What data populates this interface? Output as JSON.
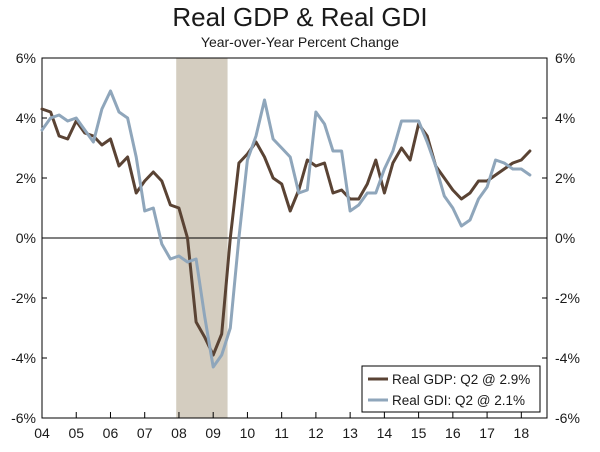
{
  "chart_data": {
    "type": "line",
    "title": "Real GDP & Real GDI",
    "subtitle": "Year-over-Year Percent Change",
    "ylim": [
      -6,
      6
    ],
    "y_ticks": [
      6,
      4,
      2,
      0,
      -2,
      -4,
      -6
    ],
    "y_tick_labels": [
      "6%",
      "4%",
      "2%",
      "0%",
      "-2%",
      "-4%",
      "-6%"
    ],
    "x_range": [
      2004.0,
      2018.75
    ],
    "x_ticks": [
      2004,
      2005,
      2006,
      2007,
      2008,
      2009,
      2010,
      2011,
      2012,
      2013,
      2014,
      2015,
      2016,
      2017,
      2018
    ],
    "x_tick_labels": [
      "04",
      "05",
      "06",
      "07",
      "08",
      "09",
      "10",
      "11",
      "12",
      "13",
      "14",
      "15",
      "16",
      "17",
      "18"
    ],
    "recession": [
      2007.92,
      2009.42
    ],
    "series": [
      {
        "name": "Real GDP: Q2 @ 2.9%",
        "color": "#5a4334",
        "x": [
          2004.0,
          2004.25,
          2004.5,
          2004.75,
          2005.0,
          2005.25,
          2005.5,
          2005.75,
          2006.0,
          2006.25,
          2006.5,
          2006.75,
          2007.0,
          2007.25,
          2007.5,
          2007.75,
          2008.0,
          2008.25,
          2008.5,
          2008.75,
          2009.0,
          2009.25,
          2009.5,
          2009.75,
          2010.0,
          2010.25,
          2010.5,
          2010.75,
          2011.0,
          2011.25,
          2011.5,
          2011.75,
          2012.0,
          2012.25,
          2012.5,
          2012.75,
          2013.0,
          2013.25,
          2013.5,
          2013.75,
          2014.0,
          2014.25,
          2014.5,
          2014.75,
          2015.0,
          2015.25,
          2015.5,
          2015.75,
          2016.0,
          2016.25,
          2016.5,
          2016.75,
          2017.0,
          2017.25,
          2017.5,
          2017.75,
          2018.0,
          2018.25
        ],
        "values": [
          4.3,
          4.2,
          3.4,
          3.3,
          3.9,
          3.5,
          3.4,
          3.1,
          3.3,
          2.4,
          2.7,
          1.5,
          1.9,
          2.2,
          1.9,
          1.1,
          1.0,
          0.0,
          -2.8,
          -3.3,
          -3.9,
          -3.2,
          0.0,
          2.5,
          2.8,
          3.2,
          2.7,
          2.0,
          1.8,
          0.9,
          1.6,
          2.6,
          2.4,
          2.5,
          1.5,
          1.6,
          1.3,
          1.3,
          1.8,
          2.6,
          1.5,
          2.5,
          3.0,
          2.6,
          3.8,
          3.4,
          2.4,
          2.0,
          1.6,
          1.3,
          1.5,
          1.9,
          1.9,
          2.1,
          2.3,
          2.5,
          2.6,
          2.9
        ]
      },
      {
        "name": "Real GDI: Q2 @ 2.1%",
        "color": "#8fa6bb",
        "x": [
          2004.0,
          2004.25,
          2004.5,
          2004.75,
          2005.0,
          2005.25,
          2005.5,
          2005.75,
          2006.0,
          2006.25,
          2006.5,
          2006.75,
          2007.0,
          2007.25,
          2007.5,
          2007.75,
          2008.0,
          2008.25,
          2008.5,
          2008.75,
          2009.0,
          2009.25,
          2009.5,
          2009.75,
          2010.0,
          2010.25,
          2010.5,
          2010.75,
          2011.0,
          2011.25,
          2011.5,
          2011.75,
          2012.0,
          2012.25,
          2012.5,
          2012.75,
          2013.0,
          2013.25,
          2013.5,
          2013.75,
          2014.0,
          2014.25,
          2014.5,
          2014.75,
          2015.0,
          2015.25,
          2015.5,
          2015.75,
          2016.0,
          2016.25,
          2016.5,
          2016.75,
          2017.0,
          2017.25,
          2017.5,
          2017.75,
          2018.0,
          2018.25
        ],
        "values": [
          3.6,
          4.0,
          4.1,
          3.9,
          4.0,
          3.6,
          3.2,
          4.3,
          4.9,
          4.2,
          4.0,
          2.7,
          0.9,
          1.0,
          -0.2,
          -0.7,
          -0.6,
          -0.8,
          -0.7,
          -2.6,
          -4.3,
          -3.9,
          -3.0,
          0.0,
          2.6,
          3.4,
          4.6,
          3.3,
          3.0,
          2.7,
          1.5,
          1.6,
          4.2,
          3.8,
          2.9,
          2.9,
          0.9,
          1.1,
          1.5,
          1.5,
          2.3,
          2.9,
          3.9,
          3.9,
          3.9,
          3.2,
          2.4,
          1.4,
          1.0,
          0.4,
          0.6,
          1.3,
          1.7,
          2.6,
          2.5,
          2.3,
          2.3,
          2.1
        ]
      }
    ],
    "legend_position": "bottom-right",
    "grid": false
  }
}
